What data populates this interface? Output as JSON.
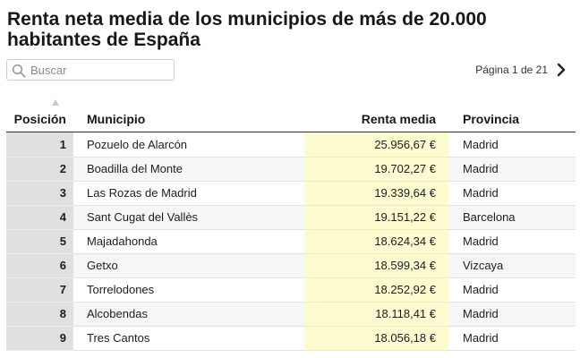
{
  "title": "Renta neta media de los municipios de más de 20.000 habitantes de España",
  "search": {
    "placeholder": "Buscar",
    "value": "",
    "icon": "search-icon"
  },
  "pagination": {
    "label": "Página 1 de 21",
    "next_icon": "chevron-right-icon"
  },
  "table": {
    "columns": [
      "Posición",
      "Municipio",
      "Renta media",
      "Provincia"
    ],
    "sort_indicator": "sort-ascending",
    "rows": [
      {
        "pos": "1",
        "municipio": "Pozuelo de Alarcón",
        "renta": "25.956,67 €",
        "provincia": "Madrid"
      },
      {
        "pos": "2",
        "municipio": "Boadilla del Monte",
        "renta": "19.702,27 €",
        "provincia": "Madrid"
      },
      {
        "pos": "3",
        "municipio": "Las Rozas de Madrid",
        "renta": "19.339,64 €",
        "provincia": "Madrid"
      },
      {
        "pos": "4",
        "municipio": "Sant Cugat del Vallès",
        "renta": "19.151,22 €",
        "provincia": "Barcelona"
      },
      {
        "pos": "5",
        "municipio": "Majadahonda",
        "renta": "18.624,34 €",
        "provincia": "Madrid"
      },
      {
        "pos": "6",
        "municipio": "Getxo",
        "renta": "18.599,34 €",
        "provincia": "Vizcaya"
      },
      {
        "pos": "7",
        "municipio": "Torrelodones",
        "renta": "18.252,92 €",
        "provincia": "Madrid"
      },
      {
        "pos": "8",
        "municipio": "Alcobendas",
        "renta": "18.118,41 €",
        "provincia": "Madrid"
      },
      {
        "pos": "9",
        "municipio": "Tres Cantos",
        "renta": "18.056,18 €",
        "provincia": "Madrid"
      }
    ]
  },
  "colors": {
    "renta_column": "#fdfcd0",
    "position_column": "#e0e0e0",
    "alt_row": "#f6f6f6"
  }
}
